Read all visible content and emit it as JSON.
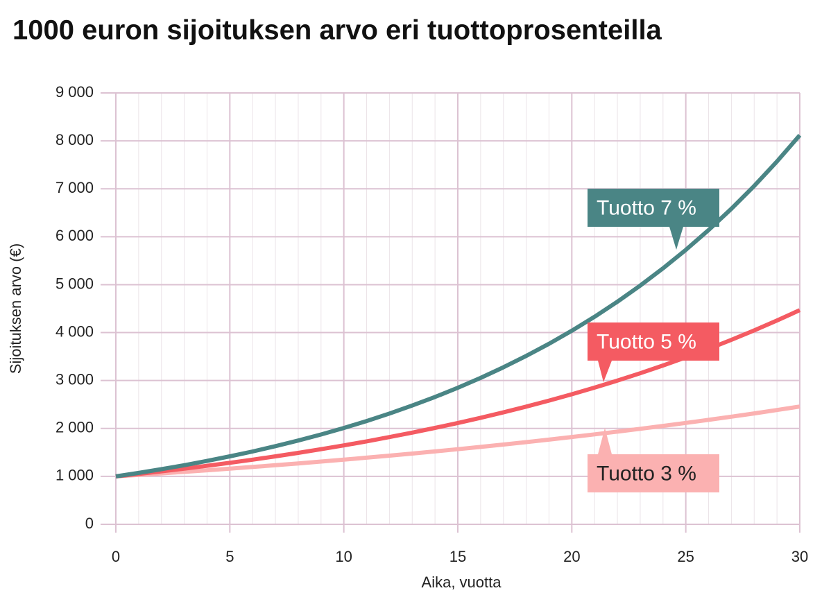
{
  "chart_data": {
    "type": "line",
    "title": "1000 euron sijoituksen arvo eri tuottoprosenteilla",
    "xlabel": "Aika, vuotta",
    "ylabel": "Sijoituksen arvo (€)",
    "x": [
      0,
      1,
      2,
      3,
      4,
      5,
      6,
      7,
      8,
      9,
      10,
      11,
      12,
      13,
      14,
      15,
      16,
      17,
      18,
      19,
      20,
      21,
      22,
      23,
      24,
      25,
      26,
      27,
      28,
      29,
      30
    ],
    "series": [
      {
        "name": "Tuotto 7 %",
        "color": "#4a8585",
        "values": [
          1000,
          1072,
          1150,
          1233,
          1322,
          1418,
          1520,
          1630,
          1748,
          1874,
          2010,
          2155,
          2311,
          2478,
          2657,
          2849,
          3055,
          3276,
          3513,
          3767,
          4039,
          4331,
          4644,
          4980,
          5340,
          5726,
          6140,
          6584,
          7060,
          7570,
          8117
        ]
      },
      {
        "name": "Tuotto 5 %",
        "color": "#f45b62",
        "values": [
          1000,
          1051,
          1105,
          1161,
          1221,
          1283,
          1349,
          1418,
          1490,
          1567,
          1647,
          1731,
          1820,
          1913,
          2011,
          2114,
          2222,
          2336,
          2455,
          2581,
          2713,
          2852,
          2998,
          3152,
          3313,
          3483,
          3661,
          3849,
          4046,
          4253,
          4468
        ]
      },
      {
        "name": "Tuotto 3 %",
        "color": "#fbb1b1",
        "values": [
          1000,
          1030,
          1062,
          1094,
          1127,
          1162,
          1197,
          1233,
          1271,
          1310,
          1349,
          1391,
          1433,
          1476,
          1521,
          1567,
          1615,
          1664,
          1715,
          1767,
          1821,
          1876,
          1933,
          1992,
          2053,
          2115,
          2179,
          2246,
          2314,
          2384,
          2457
        ]
      }
    ],
    "xlim": [
      0,
      30
    ],
    "xticks": [
      0,
      5,
      10,
      15,
      20,
      25,
      30
    ],
    "ylim": [
      0,
      9000
    ],
    "yticks": [
      0,
      {
        "value": 1000,
        "label": "1 000"
      },
      {
        "value": 2000,
        "label": "2 000"
      },
      {
        "value": 3000,
        "label": "3 000"
      },
      {
        "value": 4000,
        "label": "4 000"
      },
      {
        "value": 5000,
        "label": "5 000"
      },
      {
        "value": 6000,
        "label": "6 000"
      },
      {
        "value": 7000,
        "label": "7 000"
      },
      {
        "value": 8000,
        "label": "8 000"
      },
      {
        "value": 9000,
        "label": "9 000"
      }
    ],
    "grid": true
  }
}
